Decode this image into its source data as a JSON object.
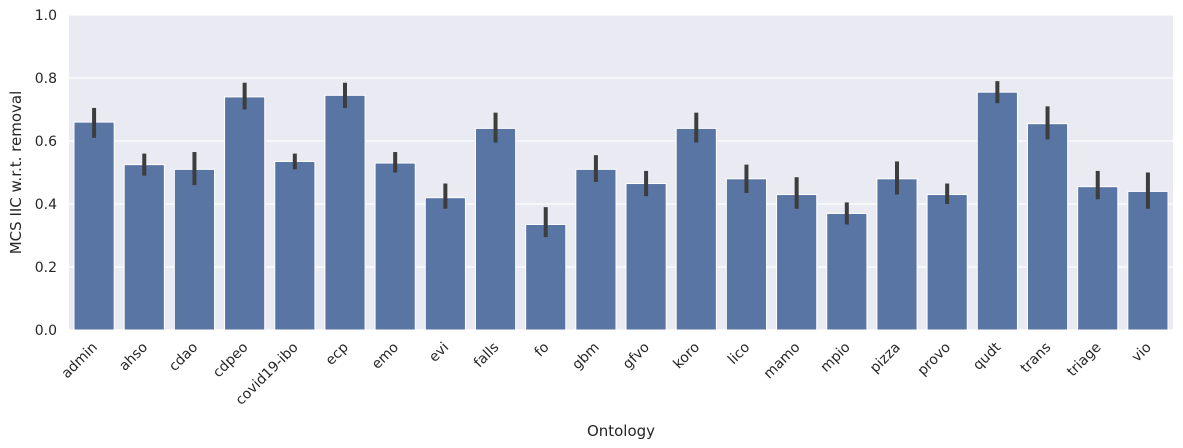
{
  "chart_data": {
    "type": "bar",
    "title": "",
    "xlabel": "Ontology",
    "ylabel": "MCS IIC w.r.t. removal",
    "ylim": [
      0,
      1.0
    ],
    "yticks": [
      0.0,
      0.2,
      0.4,
      0.6,
      0.8,
      1.0
    ],
    "ytick_labels": [
      "0.0",
      "0.2",
      "0.4",
      "0.6",
      "0.8",
      "1.0"
    ],
    "grid": true,
    "bar_color": "#5875a4",
    "errorbar_color": "#3d3d3d",
    "background_color": "#eaeaf2",
    "categories": [
      "admin",
      "ahso",
      "cdao",
      "cdpeo",
      "covid19-ibo",
      "ecp",
      "emo",
      "evi",
      "falls",
      "fo",
      "gbm",
      "gfvo",
      "koro",
      "lico",
      "mamo",
      "mpio",
      "pizza",
      "provo",
      "qudt",
      "trans",
      "triage",
      "vio"
    ],
    "values": [
      0.66,
      0.525,
      0.51,
      0.74,
      0.535,
      0.745,
      0.53,
      0.42,
      0.64,
      0.335,
      0.51,
      0.465,
      0.64,
      0.48,
      0.43,
      0.37,
      0.48,
      0.43,
      0.755,
      0.655,
      0.455,
      0.44
    ],
    "ci_low": [
      0.61,
      0.49,
      0.46,
      0.7,
      0.51,
      0.705,
      0.5,
      0.385,
      0.595,
      0.295,
      0.47,
      0.425,
      0.595,
      0.435,
      0.385,
      0.335,
      0.43,
      0.4,
      0.72,
      0.605,
      0.415,
      0.385
    ],
    "ci_high": [
      0.705,
      0.56,
      0.565,
      0.785,
      0.56,
      0.785,
      0.565,
      0.465,
      0.69,
      0.39,
      0.555,
      0.505,
      0.69,
      0.525,
      0.485,
      0.405,
      0.535,
      0.465,
      0.79,
      0.71,
      0.505,
      0.5
    ]
  }
}
